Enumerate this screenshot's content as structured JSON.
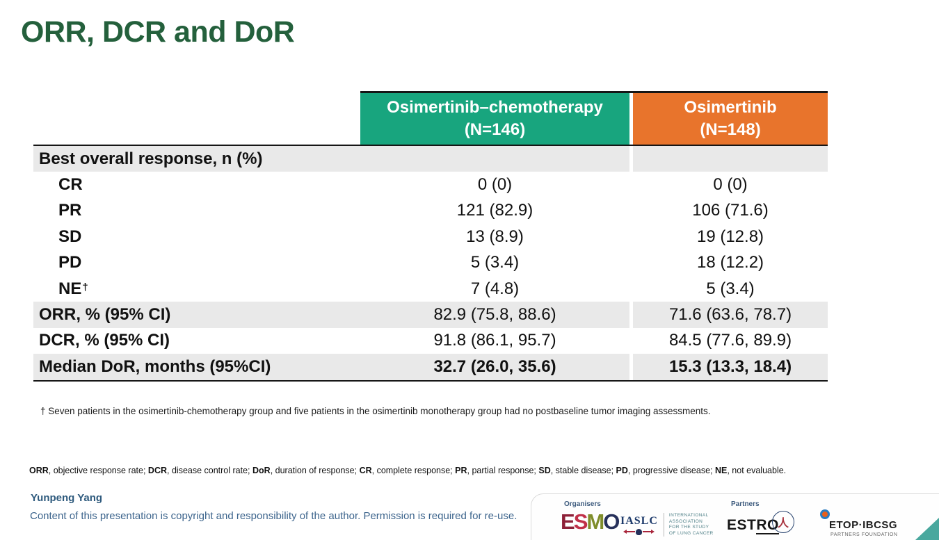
{
  "slide": {
    "title": "ORR, DCR and DoR"
  },
  "table": {
    "shade_color": "#e9e9e9",
    "columns": [
      {
        "line1": "Osimertinib–chemotherapy",
        "line2": "(N=146)",
        "color": "#18a57e"
      },
      {
        "line1": "Osimertinib",
        "line2": "(N=148)",
        "color": "#e8742c"
      }
    ],
    "rows": [
      {
        "label": "Best overall response, n (%)",
        "indent": false,
        "shaded": true,
        "bold_values": false,
        "values": [
          "",
          ""
        ]
      },
      {
        "label": "CR",
        "indent": true,
        "shaded": false,
        "bold_values": false,
        "values": [
          "0 (0)",
          "0 (0)"
        ]
      },
      {
        "label": "PR",
        "indent": true,
        "shaded": false,
        "bold_values": false,
        "values": [
          "121 (82.9)",
          "106 (71.6)"
        ]
      },
      {
        "label": "SD",
        "indent": true,
        "shaded": false,
        "bold_values": false,
        "values": [
          "13 (8.9)",
          "19 (12.8)"
        ]
      },
      {
        "label": "PD",
        "indent": true,
        "shaded": false,
        "bold_values": false,
        "values": [
          "5 (3.4)",
          "18 (12.2)"
        ]
      },
      {
        "label": "NE",
        "sup": "†",
        "indent": true,
        "shaded": false,
        "bold_values": false,
        "values": [
          "7 (4.8)",
          "5 (3.4)"
        ]
      },
      {
        "label": "ORR, % (95% CI)",
        "indent": false,
        "shaded": true,
        "bold_values": false,
        "values": [
          "82.9 (75.8, 88.6)",
          "71.6 (63.6, 78.7)"
        ]
      },
      {
        "label": "DCR, % (95% CI)",
        "indent": false,
        "shaded": false,
        "bold_values": false,
        "values": [
          "91.8 (86.1, 95.7)",
          "84.5 (77.6, 89.9)"
        ]
      },
      {
        "label": "Median DoR, months (95%CI)",
        "indent": false,
        "shaded": true,
        "bold_values": true,
        "values": [
          "32.7 (26.0, 35.6)",
          "15.3 (13.3, 18.4)"
        ]
      }
    ]
  },
  "footnote": "† Seven patients in the osimertinib-chemotherapy group and five patients in the osimertinib monotherapy group had no postbaseline tumor imaging assessments.",
  "abbreviations": {
    "items": [
      {
        "abbr": "ORR",
        "desc": "objective response rate"
      },
      {
        "abbr": "DCR",
        "desc": "disease control rate"
      },
      {
        "abbr": "DoR",
        "desc": "duration of response"
      },
      {
        "abbr": "CR",
        "desc": "complete response"
      },
      {
        "abbr": "PR",
        "desc": "partial response"
      },
      {
        "abbr": "SD",
        "desc": "stable disease"
      },
      {
        "abbr": "PD",
        "desc": "progressive disease"
      },
      {
        "abbr": "NE",
        "desc": "not evaluable"
      }
    ],
    "separator": "; ",
    "end": "."
  },
  "footer": {
    "author": "Yunpeng Yang",
    "copyright": "Content of this presentation is copyright and responsibility of the author. Permission is required for re-use."
  },
  "logos": {
    "organisers_label": "Organisers",
    "partners_label": "Partners",
    "esmo": {
      "letters": [
        {
          "char": "E",
          "color": "#8e2038"
        },
        {
          "char": "S",
          "color": "#c13049"
        },
        {
          "char": "M",
          "color": "#7f8d2b"
        },
        {
          "char": "O",
          "color": "#26305a"
        }
      ]
    },
    "iaslc": {
      "name": "IASLC",
      "lines": [
        "INTERNATIONAL",
        "ASSOCIATION",
        "FOR THE STUDY",
        "OF LUNG CANCER"
      ]
    },
    "estro": {
      "part1": "EST",
      "part2": "RO"
    },
    "society_figure": "人",
    "etop": {
      "name": "ETOP·IBCSG",
      "sub": "PARTNERS FOUNDATION"
    }
  }
}
